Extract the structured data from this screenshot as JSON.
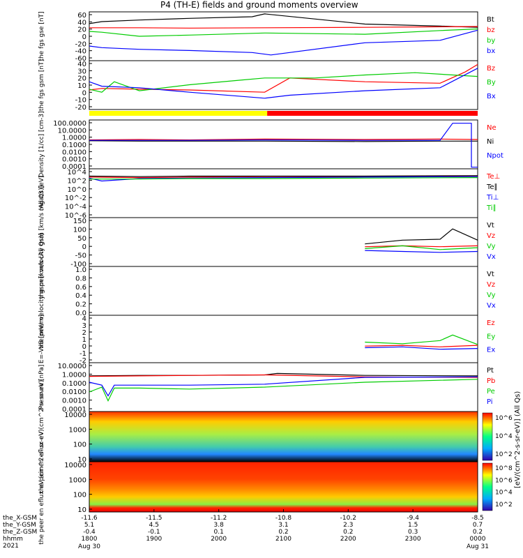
{
  "title": "P4 (TH-E) fields and ground moments overview",
  "colors": {
    "black": "#000000",
    "red": "#ff0000",
    "green": "#00cc00",
    "blue": "#0000ff",
    "yellow": "#ffff00"
  },
  "chart_data": [
    {
      "type": "line",
      "ylabel": [
        "the",
        "fgs",
        "gse",
        "[nT]"
      ],
      "yticks": [
        "60",
        "40",
        "20",
        "0",
        "-20",
        "-40",
        "-60"
      ],
      "ylim": [
        -60,
        60
      ],
      "series": [
        {
          "name": "Bt",
          "color": "#000000",
          "points": [
            [
              -11.6,
              31
            ],
            [
              -11.5,
              36
            ],
            [
              -11.2,
              40
            ],
            [
              -10.8,
              44
            ],
            [
              -10.3,
              48
            ],
            [
              -10.2,
              55
            ],
            [
              -9.4,
              30
            ],
            [
              -8.8,
              25
            ],
            [
              -8.5,
              22
            ]
          ]
        },
        {
          "name": "bz",
          "color": "#ff0000",
          "points": [
            [
              -11.6,
              21
            ],
            [
              -11.2,
              21
            ],
            [
              -10.8,
              20
            ],
            [
              -10.2,
              21
            ],
            [
              -9.4,
              22
            ],
            [
              -8.5,
              24
            ]
          ]
        },
        {
          "name": "by",
          "color": "#00cc00",
          "points": [
            [
              -11.6,
              12
            ],
            [
              -11.5,
              10
            ],
            [
              -11.2,
              0
            ],
            [
              -10.8,
              3
            ],
            [
              -10.2,
              8
            ],
            [
              -9.4,
              5
            ],
            [
              -8.8,
              14
            ],
            [
              -8.5,
              18
            ]
          ]
        },
        {
          "name": "bx",
          "color": "#0000ff",
          "points": [
            [
              -11.6,
              -24
            ],
            [
              -11.5,
              -28
            ],
            [
              -11.2,
              -32
            ],
            [
              -10.8,
              -35
            ],
            [
              -10.3,
              -40
            ],
            [
              -10.15,
              -46
            ],
            [
              -9.4,
              -16
            ],
            [
              -8.8,
              -10
            ],
            [
              -8.5,
              15
            ]
          ]
        }
      ]
    },
    {
      "type": "line",
      "ylabel": [
        "the",
        "fgs",
        "gsm",
        "[nT]"
      ],
      "yticks": [
        "40",
        "30",
        "20",
        "10",
        "0",
        "-10",
        "-20"
      ],
      "ylim": [
        -25,
        40
      ],
      "series": [
        {
          "name": "Bz",
          "color": "#ff0000",
          "points": [
            [
              -11.6,
              1
            ],
            [
              -11.5,
              3
            ],
            [
              -11.2,
              2
            ],
            [
              -10.8,
              1
            ],
            [
              -10.2,
              -2
            ],
            [
              -10.0,
              17
            ],
            [
              -9.4,
              12
            ],
            [
              -8.8,
              10
            ],
            [
              -8.6,
              25
            ],
            [
              -8.5,
              35
            ]
          ]
        },
        {
          "name": "By",
          "color": "#00cc00",
          "points": [
            [
              -11.6,
              2
            ],
            [
              -11.5,
              -2
            ],
            [
              -11.4,
              12
            ],
            [
              -11.2,
              0
            ],
            [
              -10.8,
              8
            ],
            [
              -10.4,
              14
            ],
            [
              -10.2,
              17
            ],
            [
              -9.8,
              17
            ],
            [
              -9.4,
              21
            ],
            [
              -9.0,
              24
            ],
            [
              -8.5,
              19
            ]
          ]
        },
        {
          "name": "Bx",
          "color": "#0000ff",
          "points": [
            [
              -11.6,
              12
            ],
            [
              -11.5,
              6
            ],
            [
              -11.2,
              4
            ],
            [
              -10.8,
              -2
            ],
            [
              -10.2,
              -10
            ],
            [
              -10.0,
              -6
            ],
            [
              -9.4,
              0
            ],
            [
              -8.8,
              4
            ],
            [
              -8.5,
              30
            ]
          ]
        }
      ]
    },
    {
      "type": "line",
      "log": true,
      "ylabel": [
        "Density",
        "[1/cc]",
        "[cm-3]"
      ],
      "yticks": [
        "100.0000",
        "10.0000",
        "1.0000",
        "0.1000",
        "0.0100",
        "0.0010",
        "0.0001"
      ],
      "ylim": [
        -4,
        2
      ],
      "series": [
        {
          "name": "Ne",
          "color": "#ff0000",
          "points": [
            [
              -11.6,
              -0.45
            ],
            [
              -11.2,
              -0.4
            ],
            [
              -10.8,
              -0.45
            ],
            [
              -10.2,
              -0.35
            ],
            [
              -9.4,
              -0.4
            ],
            [
              -8.8,
              -0.35
            ],
            [
              -8.5,
              -0.4
            ]
          ]
        },
        {
          "name": "Ni",
          "color": "#000000",
          "points": [
            [
              -11.6,
              -0.55
            ],
            [
              -11.2,
              -0.6
            ],
            [
              -10.8,
              -0.6
            ],
            [
              -10.2,
              -0.6
            ],
            [
              -9.4,
              -0.65
            ],
            [
              -8.8,
              -0.6
            ],
            [
              -8.5,
              -0.6
            ]
          ]
        },
        {
          "name": "Npot",
          "color": "#0000ff",
          "points": [
            [
              -11.6,
              -0.5
            ],
            [
              -11.2,
              -0.5
            ],
            [
              -10.8,
              -0.5
            ],
            [
              -10.2,
              -0.45
            ],
            [
              -9.4,
              -0.5
            ],
            [
              -8.8,
              -0.5
            ],
            [
              -8.7,
              1.6
            ],
            [
              -8.55,
              1.6
            ],
            [
              -8.55,
              -3.8
            ],
            [
              -8.5,
              -3.8
            ]
          ]
        }
      ]
    },
    {
      "type": "line",
      "log": true,
      "ylabel": [
        "mgat3",
        "[eV]"
      ],
      "yticks": [
        "10^4",
        "10^2",
        "10^0",
        "10^-2",
        "10^-4",
        "10^-6"
      ],
      "ylim": [
        -6,
        4
      ],
      "series": [
        {
          "name": "Te⊥",
          "color": "#ff0000",
          "points": [
            [
              -11.6,
              2.3
            ],
            [
              -11.2,
              2.2
            ],
            [
              -10.8,
              2.3
            ],
            [
              -10.2,
              2.4
            ],
            [
              -9.4,
              2.4
            ],
            [
              -8.5,
              2.5
            ]
          ]
        },
        {
          "name": "Te∥",
          "color": "#000000",
          "points": [
            [
              -11.6,
              2.5
            ],
            [
              -11.2,
              2.4
            ],
            [
              -10.8,
              2.5
            ],
            [
              -10.2,
              2.5
            ],
            [
              -9.4,
              2.5
            ],
            [
              -8.5,
              2.6
            ]
          ]
        },
        {
          "name": "Ti⊥",
          "color": "#0000ff",
          "points": [
            [
              -11.6,
              2.1
            ],
            [
              -11.5,
              1.5
            ],
            [
              -11.2,
              2.0
            ],
            [
              -10.8,
              2.1
            ],
            [
              -10.2,
              2.2
            ],
            [
              -9.4,
              2.3
            ],
            [
              -8.5,
              2.4
            ]
          ]
        },
        {
          "name": "Ti∥",
          "color": "#00cc00",
          "points": [
            [
              -11.6,
              1.9
            ],
            [
              -11.2,
              1.9
            ],
            [
              -10.8,
              2.0
            ],
            [
              -10.2,
              2.0
            ],
            [
              -9.4,
              2.1
            ],
            [
              -8.5,
              2.2
            ]
          ]
        }
      ]
    },
    {
      "type": "line",
      "ylabel": [
        "the",
        "peir",
        "velocity",
        "gsm",
        "[km/s (All Qs)]"
      ],
      "yticks": [
        "150",
        "100",
        "50",
        "0",
        "-50",
        "-100"
      ],
      "ylim": [
        -100,
        160
      ],
      "series": [
        {
          "name": "Vt",
          "color": "#000000",
          "points": [
            [
              -9.4,
              20
            ],
            [
              -9.1,
              40
            ],
            [
              -8.8,
              45
            ],
            [
              -8.7,
              100
            ],
            [
              -8.5,
              40
            ]
          ]
        },
        {
          "name": "Vz",
          "color": "#ff0000",
          "points": [
            [
              -9.4,
              5
            ],
            [
              -9.1,
              10
            ],
            [
              -8.8,
              5
            ],
            [
              -8.5,
              10
            ]
          ]
        },
        {
          "name": "Vy",
          "color": "#00cc00",
          "points": [
            [
              -9.4,
              -5
            ],
            [
              -9.1,
              10
            ],
            [
              -8.8,
              -10
            ],
            [
              -8.5,
              0
            ]
          ]
        },
        {
          "name": "Vx",
          "color": "#0000ff",
          "points": [
            [
              -9.4,
              -15
            ],
            [
              -9.1,
              -20
            ],
            [
              -8.8,
              -25
            ],
            [
              -8.5,
              -20
            ]
          ]
        }
      ]
    },
    {
      "type": "line",
      "ylabel": [
        "the",
        "peer",
        "velocity",
        "gsm",
        "[km/s (All Qs)]"
      ],
      "yticks": [
        "1.0",
        "0.8",
        "0.6",
        "0.4",
        "0.2",
        "0.0"
      ],
      "ylim": [
        0,
        1
      ],
      "series": [
        {
          "name": "Vt",
          "color": "#000000",
          "points": []
        },
        {
          "name": "Vz",
          "color": "#ff0000",
          "points": []
        },
        {
          "name": "Vy",
          "color": "#00cc00",
          "points": []
        },
        {
          "name": "Vx",
          "color": "#0000ff",
          "points": []
        }
      ]
    },
    {
      "type": "line",
      "ylabel": [
        "E=-VxB",
        "[mV/m]"
      ],
      "yticks": [
        "4",
        "3",
        "2",
        "1",
        "0",
        "-1",
        "-2"
      ],
      "ylim": [
        -2,
        4
      ],
      "series": [
        {
          "name": "Ez",
          "color": "#ff0000",
          "points": [
            [
              -9.4,
              0.1
            ],
            [
              -9.1,
              0.2
            ],
            [
              -8.8,
              0
            ],
            [
              -8.5,
              0.2
            ]
          ]
        },
        {
          "name": "Ey",
          "color": "#00cc00",
          "points": [
            [
              -9.4,
              0.6
            ],
            [
              -9.1,
              0.4
            ],
            [
              -8.8,
              0.8
            ],
            [
              -8.7,
              1.5
            ],
            [
              -8.5,
              0.3
            ]
          ]
        },
        {
          "name": "Ex",
          "color": "#0000ff",
          "points": [
            [
              -9.4,
              -0.1
            ],
            [
              -9.1,
              0
            ],
            [
              -8.8,
              -0.3
            ],
            [
              -8.5,
              -0.2
            ]
          ]
        }
      ]
    },
    {
      "type": "line",
      "log": true,
      "ylabel": [
        "Pressure",
        "[nPa]"
      ],
      "yticks": [
        "10.0000",
        "1.0000",
        "0.1000",
        "0.0100",
        "0.0010",
        "0.0001"
      ],
      "ylim": [
        -4,
        1
      ],
      "series": [
        {
          "name": "Pt",
          "color": "#000000",
          "points": [
            [
              -11.6,
              -0.35
            ],
            [
              -11.2,
              -0.3
            ],
            [
              -10.8,
              -0.3
            ],
            [
              -10.2,
              -0.25
            ],
            [
              -10.1,
              -0.1
            ],
            [
              -9.4,
              -0.3
            ],
            [
              -8.5,
              -0.35
            ]
          ]
        },
        {
          "name": "Pb",
          "color": "#ff0000",
          "points": [
            [
              -11.6,
              -0.4
            ],
            [
              -11.2,
              -0.35
            ],
            [
              -10.8,
              -0.3
            ],
            [
              -10.2,
              -0.25
            ],
            [
              -9.4,
              -0.45
            ],
            [
              -8.5,
              -0.5
            ]
          ]
        },
        {
          "name": "Pe",
          "color": "#00cc00",
          "points": [
            [
              -11.6,
              -2.0
            ],
            [
              -11.5,
              -1.5
            ],
            [
              -11.45,
              -2.9
            ],
            [
              -11.4,
              -1.6
            ],
            [
              -11.2,
              -1.6
            ],
            [
              -10.8,
              -1.7
            ],
            [
              -10.2,
              -1.5
            ],
            [
              -9.4,
              -1.0
            ],
            [
              -8.8,
              -0.8
            ],
            [
              -8.5,
              -0.7
            ]
          ]
        },
        {
          "name": "Pi",
          "color": "#0000ff",
          "points": [
            [
              -11.6,
              -1.0
            ],
            [
              -11.5,
              -1.3
            ],
            [
              -11.45,
              -2.4
            ],
            [
              -11.4,
              -1.3
            ],
            [
              -11.2,
              -1.3
            ],
            [
              -10.8,
              -1.3
            ],
            [
              -10.2,
              -1.2
            ],
            [
              -9.4,
              -0.5
            ],
            [
              -8.5,
              -0.45
            ]
          ]
        }
      ]
    },
    {
      "type": "heatmap",
      "ylabel": [
        "the",
        "peir",
        "en",
        "eflux",
        "eV",
        "(cm^2-s-",
        "sr-eV)"
      ],
      "yticks": [
        "10000",
        "1000",
        "100",
        "10"
      ],
      "ylim": [
        5,
        30000
      ],
      "colorbar_label": "[eV/(cm^2-s-sr-eV)] (All Qs)",
      "colorbar_ticks": [
        "10^6",
        "10^4",
        "10^2"
      ]
    },
    {
      "type": "heatmap",
      "ylabel": [
        "the",
        "peer",
        "en",
        "eflux",
        "eV",
        "(cm^2-s-",
        "sr-eV)"
      ],
      "yticks": [
        "10000",
        "1000",
        "100",
        "10"
      ],
      "ylim": [
        5,
        30000
      ],
      "colorbar_label": "[eV/(cm^2-s-sr-eV)]",
      "colorbar_ticks": [
        "10^8",
        "10^6",
        "10^4",
        "10^2"
      ]
    }
  ],
  "mode_bar": {
    "segments": [
      {
        "from": -11.6,
        "to": -10.18,
        "color": "#ffff00"
      },
      {
        "from": -10.18,
        "to": -8.5,
        "color": "#ff0000"
      }
    ]
  },
  "xaxis": {
    "range": [
      -11.6,
      -8.5
    ],
    "row_labels": [
      "the_X-GSM",
      "the_Y-GSM",
      "the_Z-GSM",
      "hhmm",
      "2021"
    ],
    "ticks": [
      {
        "x": "-11.6",
        "y": "5.1",
        "z": "-0.4",
        "hhmm": "1800",
        "date": "Aug 30"
      },
      {
        "x": "-11.5",
        "y": "4.5",
        "z": "-0.1",
        "hhmm": "1900",
        "date": ""
      },
      {
        "x": "-11.2",
        "y": "3.8",
        "z": "0.1",
        "hhmm": "2000",
        "date": ""
      },
      {
        "x": "-10.8",
        "y": "3.1",
        "z": "0.2",
        "hhmm": "2100",
        "date": ""
      },
      {
        "x": "-10.2",
        "y": "2.3",
        "z": "0.2",
        "hhmm": "2200",
        "date": ""
      },
      {
        "x": "-9.4",
        "y": "1.5",
        "z": "0.3",
        "hhmm": "2300",
        "date": ""
      },
      {
        "x": "-8.5",
        "y": "0.7",
        "z": "0.2",
        "hhmm": "0000",
        "date": "Aug 31"
      }
    ]
  }
}
